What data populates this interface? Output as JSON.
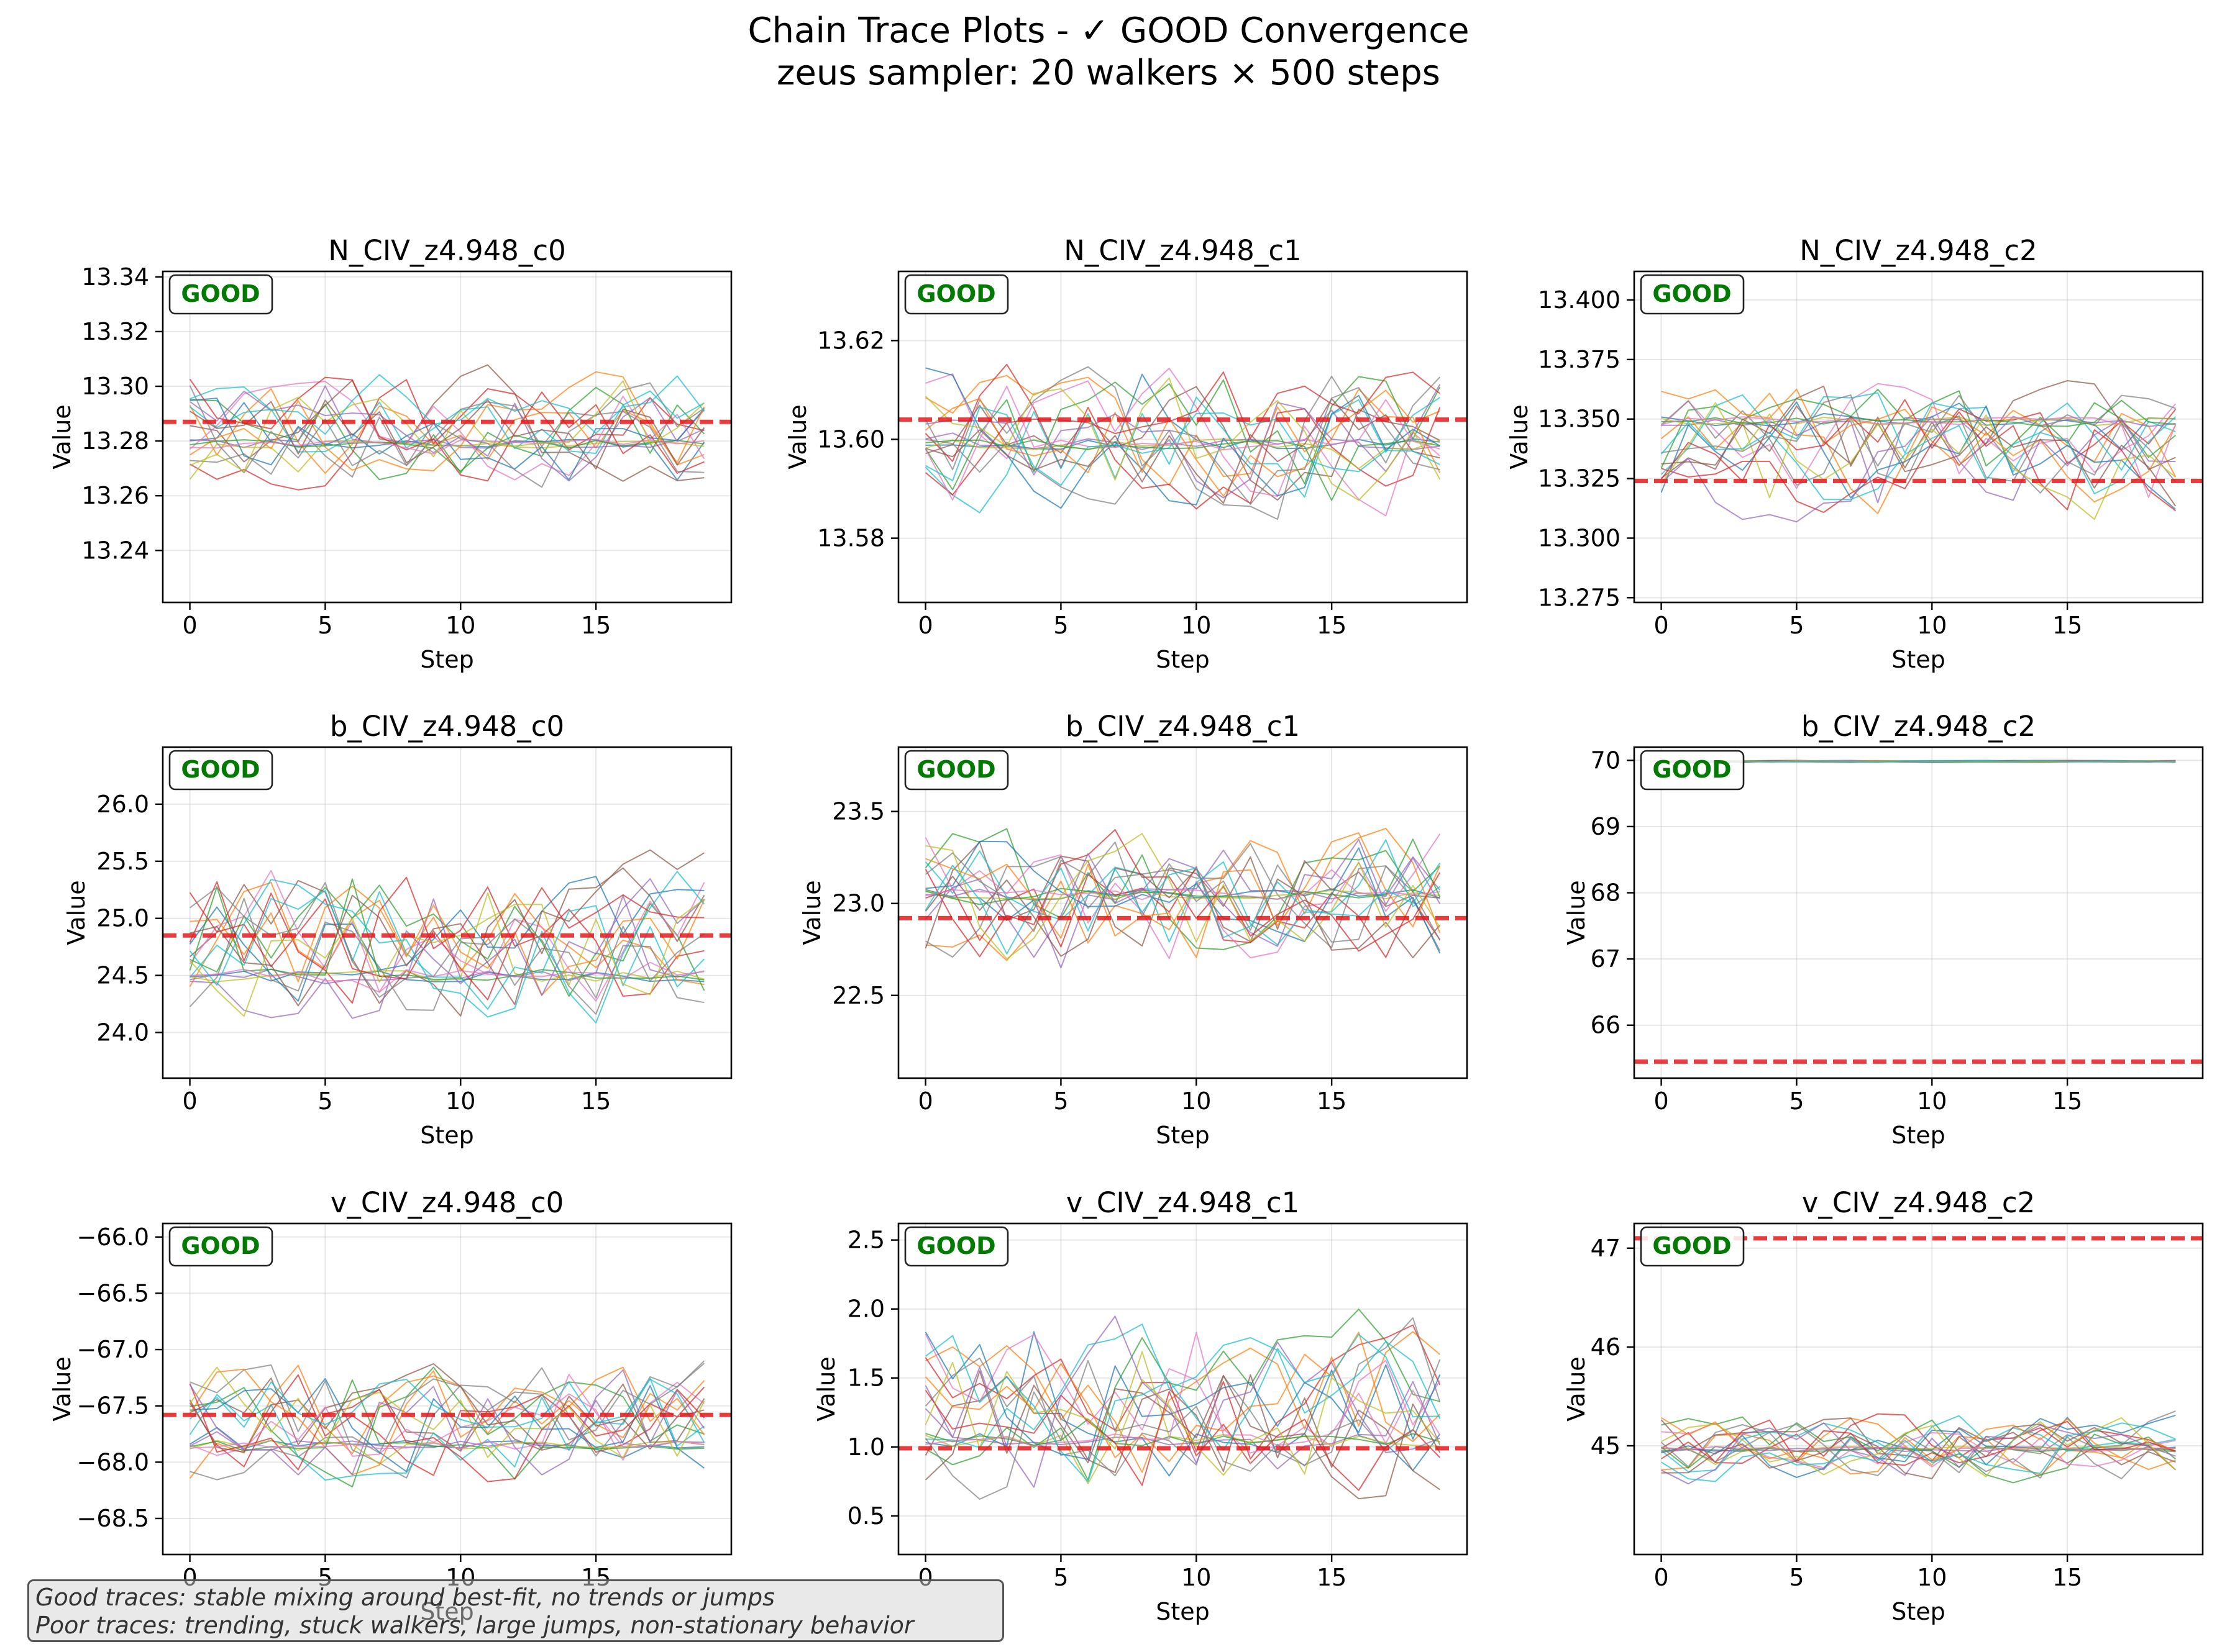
{
  "figure": {
    "title_line1": "Chain Trace Plots - ✓ GOOD Convergence",
    "title_line2": "zeus sampler: 20 walkers × 500 steps",
    "footnote_line1": "Good traces: stable mixing around best-fit, no trends or jumps",
    "footnote_line2": "Poor traces: trending, stuck walkers, large jumps, non-stationary behavior",
    "colors": {
      "bestfit_line": "#e41a1c",
      "badge_text": "#007a00",
      "walkers": [
        "#1f77b4",
        "#ff7f0e",
        "#2ca02c",
        "#d62728",
        "#9467bd",
        "#8c564b",
        "#e377c2",
        "#7f7f7f",
        "#bcbd22",
        "#17becf"
      ]
    }
  },
  "chart_data": [
    {
      "type": "line",
      "title": "N_CIV_z4.948_c0",
      "xlabel": "Step",
      "ylabel": "Value",
      "badge": "GOOD",
      "xlim": [
        -1,
        20
      ],
      "ylim": [
        13.221,
        13.342
      ],
      "xticks": [
        0,
        5,
        10,
        15
      ],
      "yticks": [
        13.24,
        13.26,
        13.28,
        13.3,
        13.32,
        13.34
      ],
      "ytick_labels": [
        "13.24",
        "13.26",
        "13.28",
        "13.30",
        "13.32",
        "13.34"
      ],
      "best_fit": 13.287,
      "n_walkers": 20,
      "n_steps_shown": 20,
      "walker_center": 13.284,
      "walker_spread": 0.013,
      "stuck_level": 13.279
    },
    {
      "type": "line",
      "title": "N_CIV_z4.948_c1",
      "xlabel": "Step",
      "ylabel": "Value",
      "badge": "GOOD",
      "xlim": [
        -1,
        20
      ],
      "ylim": [
        13.567,
        13.634
      ],
      "xticks": [
        0,
        5,
        10,
        15
      ],
      "yticks": [
        13.58,
        13.6,
        13.62
      ],
      "ytick_labels": [
        "13.58",
        "13.60",
        "13.62"
      ],
      "best_fit": 13.604,
      "n_walkers": 20,
      "n_steps_shown": 20,
      "walker_center": 13.601,
      "walker_spread": 0.009,
      "stuck_level": 13.599
    },
    {
      "type": "line",
      "title": "N_CIV_z4.948_c2",
      "xlabel": "Step",
      "ylabel": "Value",
      "badge": "GOOD",
      "xlim": [
        -1,
        20
      ],
      "ylim": [
        13.273,
        13.412
      ],
      "xticks": [
        0,
        5,
        10,
        15
      ],
      "yticks": [
        13.275,
        13.3,
        13.325,
        13.35,
        13.375,
        13.4
      ],
      "ytick_labels": [
        "13.275",
        "13.300",
        "13.325",
        "13.350",
        "13.375",
        "13.400"
      ],
      "best_fit": 13.324,
      "n_walkers": 20,
      "n_steps_shown": 20,
      "walker_center": 13.337,
      "walker_spread": 0.017,
      "stuck_level": 13.349
    },
    {
      "type": "line",
      "title": "b_CIV_z4.948_c0",
      "xlabel": "Step",
      "ylabel": "Value",
      "badge": "GOOD",
      "xlim": [
        -1,
        20
      ],
      "ylim": [
        23.6,
        26.5
      ],
      "xticks": [
        0,
        5,
        10,
        15
      ],
      "yticks": [
        24.0,
        24.5,
        25.0,
        25.5,
        26.0
      ],
      "ytick_labels": [
        "24.0",
        "24.5",
        "25.0",
        "25.5",
        "26.0"
      ],
      "best_fit": 24.85,
      "n_walkers": 20,
      "n_steps_shown": 20,
      "walker_center": 24.8,
      "walker_spread": 0.45,
      "stuck_level": 24.5
    },
    {
      "type": "line",
      "title": "b_CIV_z4.948_c1",
      "xlabel": "Step",
      "ylabel": "Value",
      "badge": "GOOD",
      "xlim": [
        -1,
        20
      ],
      "ylim": [
        22.05,
        23.85
      ],
      "xticks": [
        0,
        5,
        10,
        15
      ],
      "yticks": [
        22.5,
        23.0,
        23.5
      ],
      "ytick_labels": [
        "22.5",
        "23.0",
        "23.5"
      ],
      "best_fit": 22.92,
      "n_walkers": 20,
      "n_steps_shown": 20,
      "walker_center": 23.02,
      "walker_spread": 0.25,
      "stuck_level": 23.05
    },
    {
      "type": "line",
      "title": "b_CIV_z4.948_c2",
      "xlabel": "Step",
      "ylabel": "Value",
      "badge": "GOOD",
      "xlim": [
        -1,
        20
      ],
      "ylim": [
        65.2,
        70.2
      ],
      "xticks": [
        0,
        5,
        10,
        15
      ],
      "yticks": [
        66,
        67,
        68,
        69,
        70
      ],
      "ytick_labels": [
        "66",
        "67",
        "68",
        "69",
        "70"
      ],
      "best_fit": 65.45,
      "n_walkers": 20,
      "n_steps_shown": 20,
      "walker_center": 69.985,
      "walker_spread": 0.008,
      "stuck_level": 69.99
    },
    {
      "type": "line",
      "title": "v_CIV_z4.948_c0",
      "xlabel": "Step",
      "ylabel": "Value",
      "badge": "GOOD",
      "xlim": [
        -1,
        20
      ],
      "ylim": [
        -68.82,
        -65.88
      ],
      "xticks": [
        0,
        5,
        10,
        15
      ],
      "yticks": [
        -68.5,
        -68.0,
        -67.5,
        -67.0,
        -66.5,
        -66.0
      ],
      "ytick_labels": [
        "−68.5",
        "−68.0",
        "−67.5",
        "−67.0",
        "−66.5",
        "−66.0"
      ],
      "best_fit": -67.58,
      "n_walkers": 20,
      "n_steps_shown": 20,
      "walker_center": -67.65,
      "walker_spread": 0.35,
      "stuck_level": -67.85
    },
    {
      "type": "line",
      "title": "v_CIV_z4.948_c1",
      "xlabel": "Step",
      "ylabel": "Value",
      "badge": "GOOD",
      "xlim": [
        -1,
        20
      ],
      "ylim": [
        0.22,
        2.62
      ],
      "xticks": [
        0,
        5,
        10,
        15
      ],
      "yticks": [
        0.5,
        1.0,
        1.5,
        2.0,
        2.5
      ],
      "ytick_labels": [
        "0.5",
        "1.0",
        "1.5",
        "2.0",
        "2.5"
      ],
      "best_fit": 0.99,
      "n_walkers": 20,
      "n_steps_shown": 20,
      "walker_center": 1.3,
      "walker_spread": 0.4,
      "stuck_level": 1.05
    },
    {
      "type": "line",
      "title": "v_CIV_z4.948_c2",
      "xlabel": "Step",
      "ylabel": "Value",
      "badge": "GOOD",
      "xlim": [
        -1,
        20
      ],
      "ylim": [
        43.9,
        47.25
      ],
      "xticks": [
        0,
        5,
        10,
        15
      ],
      "yticks": [
        45,
        46,
        47
      ],
      "ytick_labels": [
        "45",
        "46",
        "47"
      ],
      "best_fit": 47.1,
      "n_walkers": 20,
      "n_steps_shown": 20,
      "walker_center": 44.98,
      "walker_spread": 0.22,
      "stuck_level": 44.97
    }
  ]
}
